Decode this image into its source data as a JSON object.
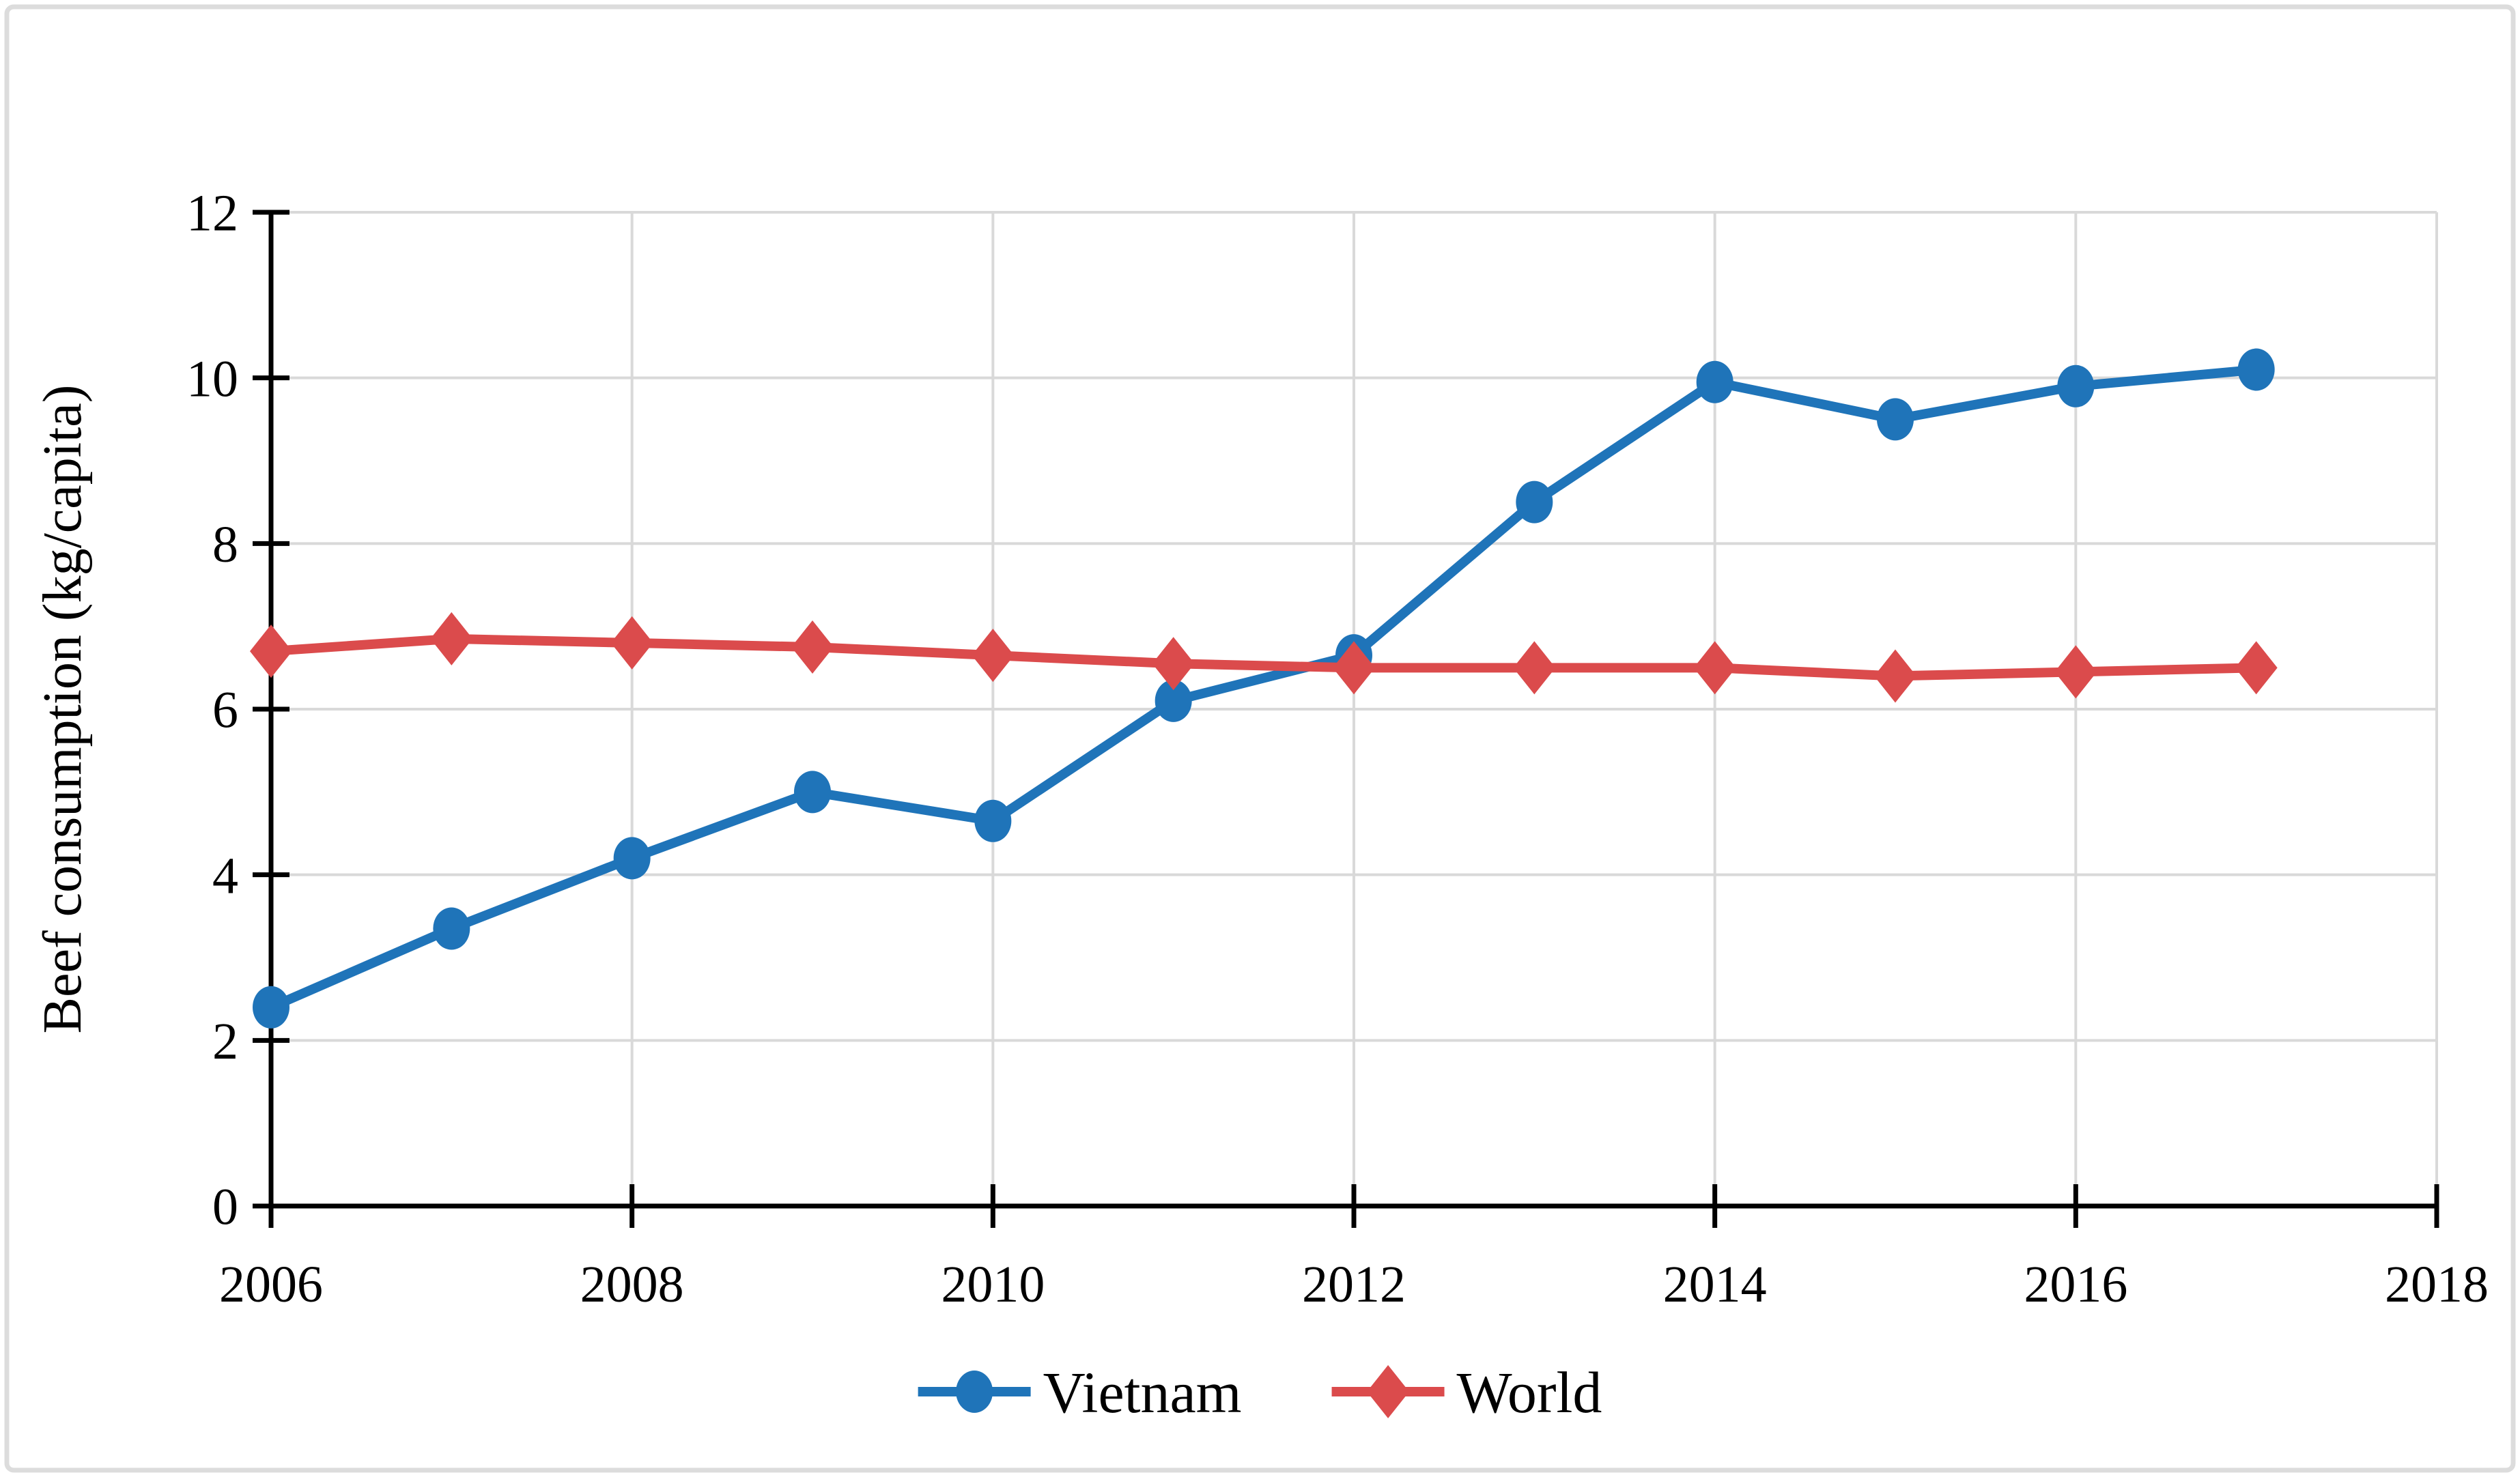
{
  "figure": {
    "background_color": "#ffffff",
    "border_color": "#dcdcdc"
  },
  "chart_data": {
    "type": "line",
    "title": "",
    "xlabel": "",
    "ylabel": "Beef consumption (kg/capita)",
    "ylim": [
      0,
      12
    ],
    "yticks": [
      0,
      2,
      4,
      6,
      8,
      10,
      12
    ],
    "xlim": [
      2006,
      2018
    ],
    "xticks": [
      2006,
      2008,
      2010,
      2012,
      2014,
      2016,
      2018
    ],
    "grid": true,
    "gridline_color": "#d9d9d9",
    "axis_color": "#000000",
    "tick_label_color": "#000000",
    "legend_position": "bottom-center",
    "x": [
      2006,
      2007,
      2008,
      2009,
      2010,
      2011,
      2012,
      2013,
      2014,
      2015,
      2016,
      2017
    ],
    "series": [
      {
        "name": "Vietnam",
        "marker": "circle",
        "color": "#1f74b9",
        "values": [
          2.4,
          3.35,
          4.2,
          5.0,
          4.65,
          6.1,
          6.65,
          8.5,
          9.95,
          9.5,
          9.9,
          10.1
        ]
      },
      {
        "name": "World",
        "marker": "diamond",
        "color": "#db4b4c",
        "values": [
          6.7,
          6.85,
          6.8,
          6.75,
          6.65,
          6.55,
          6.5,
          6.5,
          6.5,
          6.4,
          6.45,
          6.5
        ]
      }
    ]
  }
}
